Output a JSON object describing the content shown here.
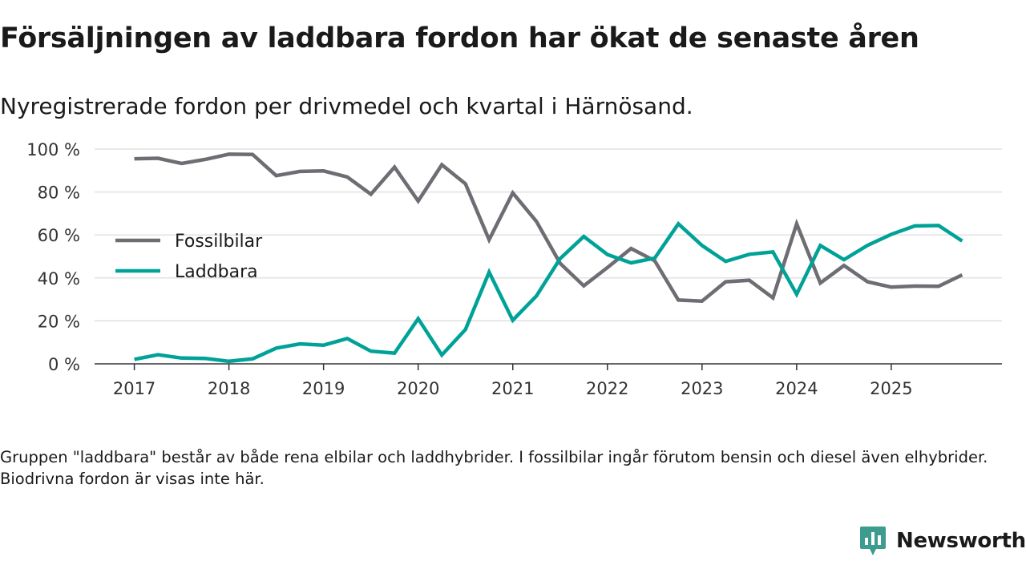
{
  "header": {
    "title": "Försäljningen av laddbara fordon har ökat de senaste åren",
    "subtitle": "Nyregistrerade fordon per drivmedel och kvartal i Härnösand."
  },
  "footer": {
    "note": "Gruppen \"laddbara\" består av både rena elbilar och laddhybrider. I fossilbilar ingår förutom bensin och diesel även elhybrider. Biodrivna fordon är visas inte här.",
    "brand": "Newsworthy",
    "brand_icon": "newsworthy-logo-icon",
    "brand_color": "#3d9b8f"
  },
  "chart_data": {
    "type": "line",
    "title": "",
    "xlabel": "",
    "ylabel": "",
    "ylim": [
      0,
      100
    ],
    "y_ticks": [
      0,
      20,
      40,
      60,
      80,
      100
    ],
    "y_tick_labels": [
      "0 %",
      "20 %",
      "40 %",
      "60 %",
      "80 %",
      "100 %"
    ],
    "x_ticks": [
      2017,
      2018,
      2019,
      2020,
      2021,
      2022,
      2023,
      2024,
      2025
    ],
    "x_tick_labels": [
      "2017",
      "2018",
      "2019",
      "2020",
      "2021",
      "2022",
      "2023",
      "2024",
      "2025"
    ],
    "xlim": [
      2016.58,
      2026.17
    ],
    "grid": true,
    "legend_position": "left",
    "x": [
      2017,
      2017.25,
      2017.5,
      2017.75,
      2018,
      2018.25,
      2018.5,
      2018.75,
      2019,
      2019.25,
      2019.5,
      2019.75,
      2020,
      2020.25,
      2020.5,
      2020.75,
      2021,
      2021.25,
      2021.5,
      2021.75,
      2022,
      2022.25,
      2022.5,
      2022.75,
      2023,
      2023.25,
      2023.5,
      2023.75,
      2024,
      2024.25,
      2024.5,
      2024.75,
      2025,
      2025.25,
      2025.5,
      2025.75
    ],
    "series": [
      {
        "name": "Fossilbilar",
        "color": "#6d6d73",
        "values": [
          95.5,
          95.7,
          93.3,
          95.2,
          97.6,
          97.5,
          87.6,
          89.6,
          89.8,
          87,
          79,
          91.6,
          75.8,
          92.7,
          83.8,
          57.8,
          79.6,
          66.3,
          46.8,
          36.3,
          44.8,
          53.7,
          48,
          29.7,
          29.2,
          38.2,
          38.9,
          30.7,
          65.2,
          37.6,
          45.8,
          38.2,
          35.7,
          36.2,
          36.1,
          41.4
        ]
      },
      {
        "name": "Laddbara",
        "color": "#00a298",
        "values": [
          2.1,
          4.2,
          2.7,
          2.5,
          1.2,
          2.3,
          7.3,
          9.3,
          8.7,
          11.8,
          5.9,
          5,
          21,
          4.1,
          16,
          42.7,
          20.3,
          31.6,
          49,
          59.3,
          50.9,
          47,
          49.2,
          65.2,
          55.1,
          47.7,
          51,
          52.1,
          32.4,
          55.1,
          48.5,
          55.2,
          60.3,
          64.2,
          64.4,
          57.2
        ]
      }
    ]
  }
}
